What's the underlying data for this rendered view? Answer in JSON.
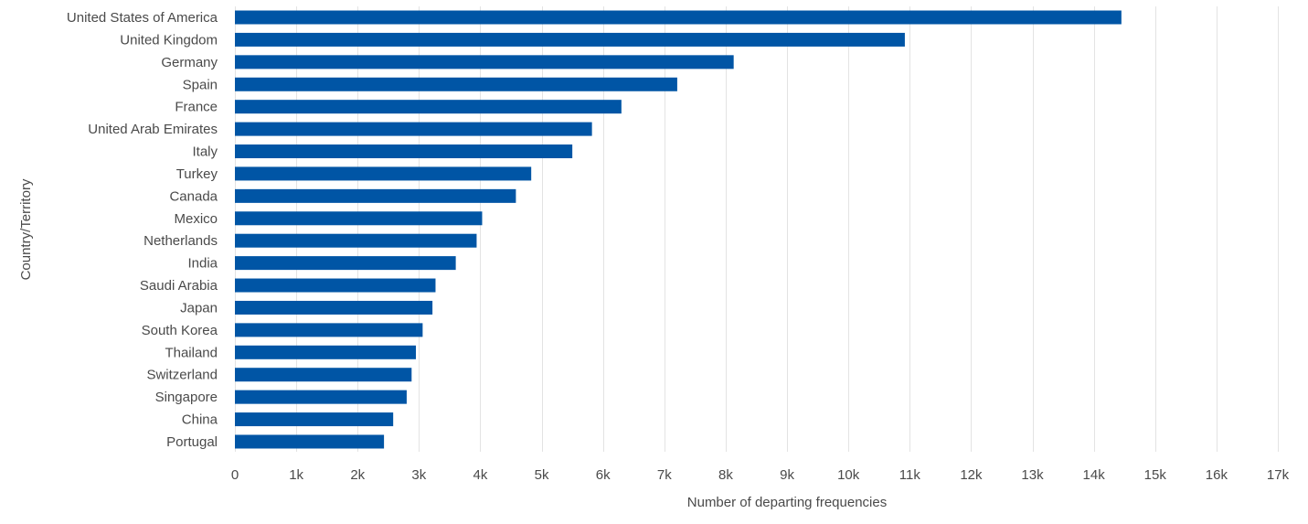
{
  "chart_data": {
    "type": "bar",
    "orientation": "horizontal",
    "categories": [
      "United States of America",
      "United Kingdom",
      "Germany",
      "Spain",
      "France",
      "United Arab Emirates",
      "Italy",
      "Turkey",
      "Canada",
      "Mexico",
      "Netherlands",
      "India",
      "Saudi Arabia",
      "Japan",
      "South Korea",
      "Thailand",
      "Switzerland",
      "Singapore",
      "China",
      "Portugal"
    ],
    "values": [
      14450,
      10920,
      8130,
      7210,
      6300,
      5820,
      5500,
      4830,
      4580,
      4030,
      3940,
      3600,
      3270,
      3220,
      3060,
      2950,
      2880,
      2800,
      2580,
      2430
    ],
    "xlim": [
      0,
      17000
    ],
    "xticks": [
      0,
      1000,
      2000,
      3000,
      4000,
      5000,
      6000,
      7000,
      8000,
      9000,
      10000,
      11000,
      12000,
      13000,
      14000,
      15000,
      16000,
      17000
    ],
    "xtick_labels": [
      "0",
      "1k",
      "2k",
      "3k",
      "4k",
      "5k",
      "6k",
      "7k",
      "8k",
      "9k",
      "10k",
      "11k",
      "12k",
      "13k",
      "14k",
      "15k",
      "16k",
      "17k"
    ],
    "xlabel": "Number of departing frequencies",
    "ylabel": "Country/Territory",
    "grid": "vertical",
    "bar_color": "#0055a5"
  }
}
